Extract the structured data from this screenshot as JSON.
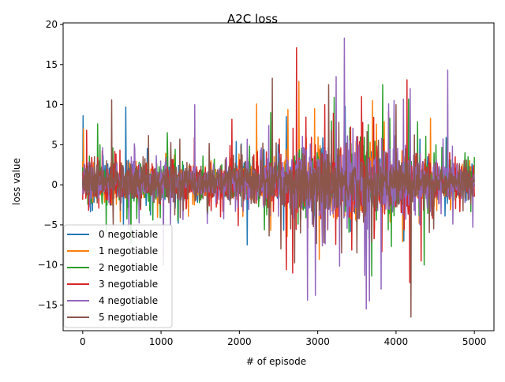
{
  "chart_data": {
    "type": "line",
    "title": "A2C loss",
    "xlabel": "# of episode",
    "ylabel": "loss value",
    "xlim": [
      -250,
      5250
    ],
    "ylim": [
      -18.2,
      20.2
    ],
    "xticks": [
      0,
      1000,
      2000,
      3000,
      4000,
      5000
    ],
    "xtick_labels": [
      "0",
      "1000",
      "2000",
      "3000",
      "4000",
      "5000"
    ],
    "yticks": [
      -15,
      -10,
      -5,
      0,
      5,
      10,
      15,
      20
    ],
    "ytick_labels": [
      "−15",
      "−10",
      "−5",
      "0",
      "5",
      "10",
      "15",
      "20"
    ],
    "grid": false,
    "legend_position": "lower-left",
    "series": [
      {
        "name": "0 negotiable",
        "color": "#1f77b4",
        "profile": [
          [
            0,
            2.5
          ],
          [
            500,
            2.2
          ],
          [
            1000,
            1.8
          ],
          [
            1500,
            1.6
          ],
          [
            2000,
            1.8
          ],
          [
            2500,
            2.2
          ],
          [
            3000,
            2.6
          ],
          [
            3500,
            2.8
          ],
          [
            4000,
            2.4
          ],
          [
            4500,
            1.8
          ],
          [
            5000,
            1.2
          ]
        ],
        "peaks": [
          [
            5,
            8.6
          ],
          [
            550,
            9.7
          ],
          [
            1220,
            -4.8
          ],
          [
            2100,
            -7.5
          ],
          [
            2600,
            8.5
          ],
          [
            3350,
            9.8
          ],
          [
            4640,
            5.9
          ],
          [
            4100,
            -7.0
          ]
        ]
      },
      {
        "name": "1 negotiable",
        "color": "#ff7f0e",
        "profile": [
          [
            0,
            2.5
          ],
          [
            500,
            2.2
          ],
          [
            1000,
            1.8
          ],
          [
            1500,
            1.7
          ],
          [
            2000,
            2.0
          ],
          [
            2500,
            2.6
          ],
          [
            3000,
            3.2
          ],
          [
            3500,
            3.2
          ],
          [
            4000,
            2.8
          ],
          [
            4500,
            2.0
          ],
          [
            5000,
            1.2
          ]
        ],
        "peaks": [
          [
            10,
            7.0
          ],
          [
            480,
            -4.6
          ],
          [
            2220,
            10.1
          ],
          [
            2620,
            9.4
          ],
          [
            2760,
            12.9
          ],
          [
            2960,
            9.5
          ],
          [
            3700,
            10.5
          ],
          [
            4440,
            8.3
          ],
          [
            4520,
            -3.2
          ],
          [
            3020,
            -9.3
          ]
        ]
      },
      {
        "name": "2 negotiable",
        "color": "#2ca02c",
        "profile": [
          [
            0,
            2.5
          ],
          [
            500,
            2.4
          ],
          [
            1000,
            2.0
          ],
          [
            1500,
            1.8
          ],
          [
            2000,
            2.0
          ],
          [
            2500,
            2.6
          ],
          [
            3000,
            3.2
          ],
          [
            3500,
            3.4
          ],
          [
            4000,
            3.0
          ],
          [
            4500,
            2.2
          ],
          [
            5000,
            1.5
          ]
        ],
        "peaks": [
          [
            190,
            7.6
          ],
          [
            1080,
            6.5
          ],
          [
            2400,
            9.0
          ],
          [
            3210,
            10.9
          ],
          [
            3690,
            -11.4
          ],
          [
            3830,
            12.5
          ],
          [
            4160,
            10.7
          ],
          [
            4360,
            -10.0
          ],
          [
            4510,
            5.0
          ],
          [
            4880,
            4.0
          ]
        ]
      },
      {
        "name": "3 negotiable",
        "color": "#d62728",
        "profile": [
          [
            0,
            2.5
          ],
          [
            500,
            2.2
          ],
          [
            1000,
            2.0
          ],
          [
            1500,
            2.0
          ],
          [
            2000,
            2.4
          ],
          [
            2500,
            3.0
          ],
          [
            3000,
            3.8
          ],
          [
            3500,
            3.9
          ],
          [
            4000,
            3.4
          ],
          [
            4500,
            2.4
          ],
          [
            5000,
            1.5
          ]
        ],
        "peaks": [
          [
            50,
            6.8
          ],
          [
            2730,
            17.1
          ],
          [
            2600,
            -10.6
          ],
          [
            2680,
            -11.0
          ],
          [
            3090,
            10.0
          ],
          [
            3340,
            11.7
          ],
          [
            3560,
            11.0
          ],
          [
            4140,
            13.1
          ],
          [
            4175,
            -12.2
          ],
          [
            4320,
            -9.5
          ]
        ]
      },
      {
        "name": "4 negotiable",
        "color": "#9467bd",
        "profile": [
          [
            0,
            2.0
          ],
          [
            500,
            1.9
          ],
          [
            1000,
            1.7
          ],
          [
            1500,
            1.7
          ],
          [
            2000,
            2.2
          ],
          [
            2500,
            3.4
          ],
          [
            3000,
            4.6
          ],
          [
            3500,
            5.0
          ],
          [
            4000,
            4.2
          ],
          [
            4500,
            2.8
          ],
          [
            5000,
            1.6
          ]
        ],
        "peaks": [
          [
            1030,
            -10.0
          ],
          [
            1430,
            10.0
          ],
          [
            2870,
            -14.4
          ],
          [
            2970,
            -13.8
          ],
          [
            3340,
            18.3
          ],
          [
            3620,
            -15.5
          ],
          [
            3660,
            -14.5
          ],
          [
            3810,
            -13.0
          ],
          [
            4180,
            12.0
          ],
          [
            4660,
            14.3
          ],
          [
            4980,
            -5.3
          ]
        ]
      },
      {
        "name": "5 negotiable",
        "color": "#8c564b",
        "profile": [
          [
            0,
            2.5
          ],
          [
            500,
            2.4
          ],
          [
            1000,
            2.2
          ],
          [
            1500,
            2.0
          ],
          [
            2000,
            2.2
          ],
          [
            2500,
            2.8
          ],
          [
            3000,
            3.4
          ],
          [
            3500,
            3.6
          ],
          [
            4000,
            3.2
          ],
          [
            4500,
            2.4
          ],
          [
            5000,
            1.8
          ]
        ],
        "peaks": [
          [
            370,
            10.6
          ],
          [
            2420,
            13.3
          ],
          [
            2530,
            -8.0
          ],
          [
            3140,
            12.5
          ],
          [
            3500,
            -8.5
          ],
          [
            4000,
            10.0
          ],
          [
            4190,
            -16.5
          ],
          [
            4480,
            -5.5
          ]
        ]
      }
    ]
  }
}
